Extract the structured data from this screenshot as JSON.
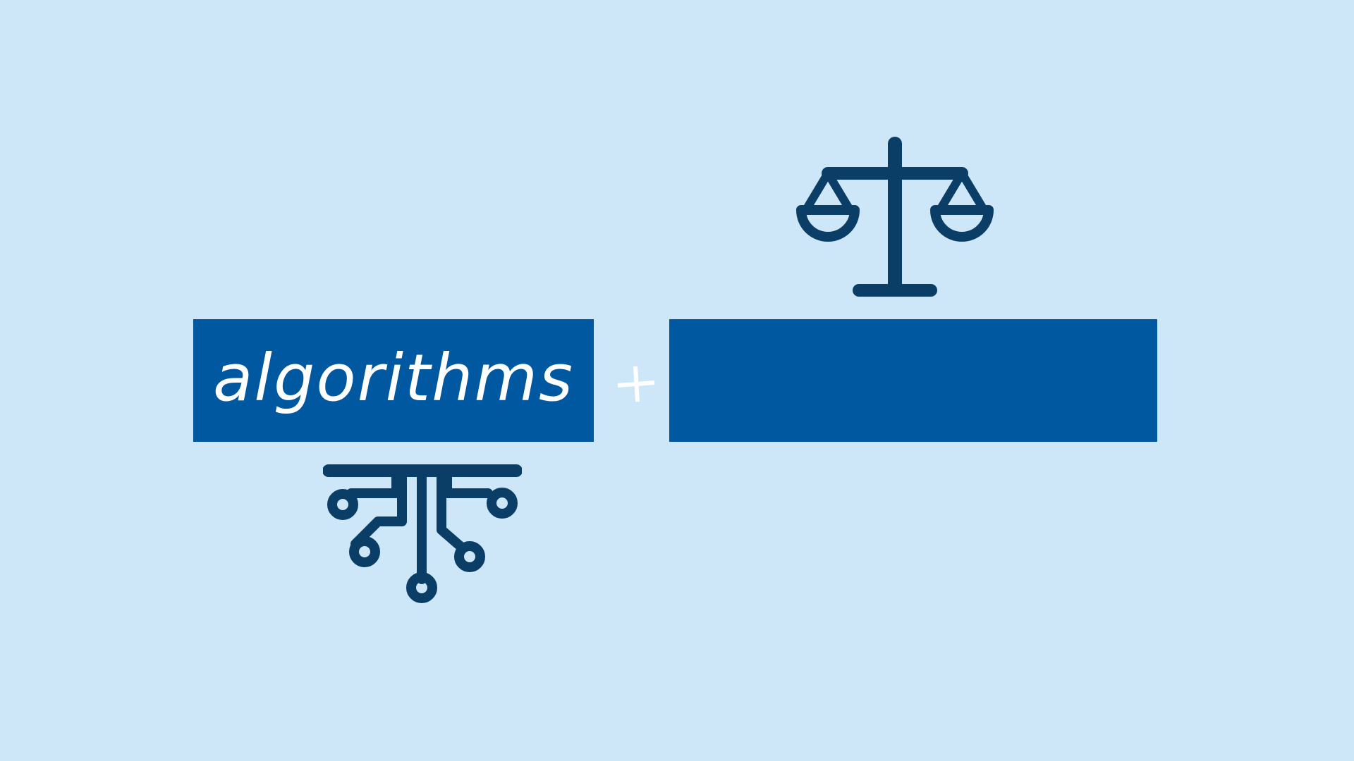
{
  "left_box": {
    "label": "algorithms"
  },
  "right_box": {
    "label": ""
  },
  "icons": {
    "top": "scales-of-justice-icon",
    "bottom": "circuit-tree-icon",
    "operator": "plus-icon"
  },
  "colors": {
    "background": "#cde6f8",
    "box_fill": "#0058a1",
    "icon": "#0b3e66",
    "text": "#ffffff"
  }
}
